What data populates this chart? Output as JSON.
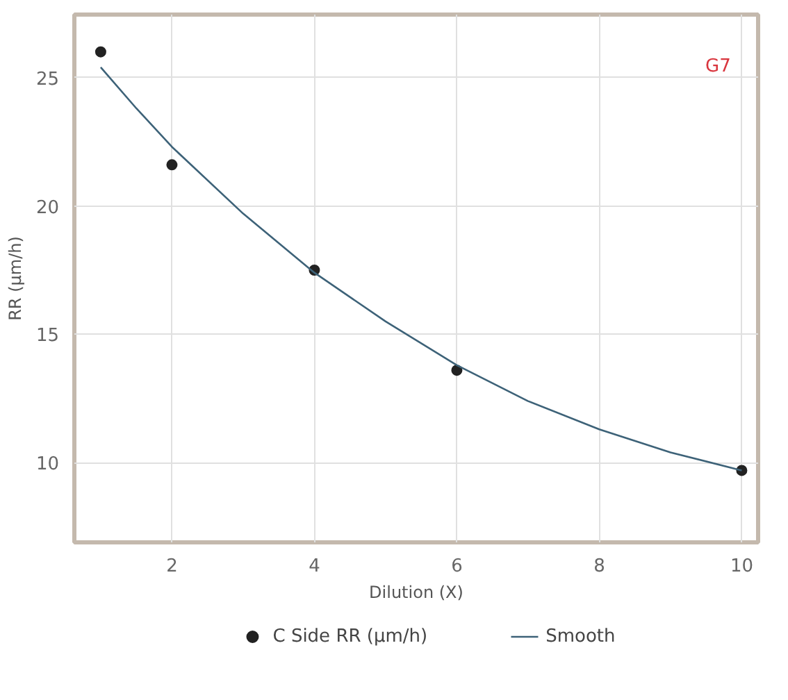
{
  "chart_data": {
    "type": "scatter",
    "xlabel": "Dilution (X)",
    "ylabel": "RR (µm/h)",
    "annotations": [
      "G7"
    ],
    "xlim": [
      0.63,
      10.23
    ],
    "ylim": [
      6.9,
      27.45
    ],
    "xticks": [
      2,
      4,
      6,
      8,
      10
    ],
    "yticks": [
      10,
      15,
      20,
      25
    ],
    "grid": true,
    "legend": "bottom",
    "marker": "circle",
    "series": [
      {
        "name": "C Side RR (µm/h)",
        "type": "scatter",
        "color": "#222222",
        "x": [
          1,
          2,
          4,
          6,
          10
        ],
        "values": [
          26.0,
          21.6,
          17.5,
          13.6,
          9.7
        ]
      },
      {
        "name": "Smooth",
        "type": "line",
        "color": "#3d6278",
        "marker": "none",
        "x": [
          1,
          1.5,
          2,
          3,
          4,
          5,
          6,
          7,
          8,
          9,
          10
        ],
        "values": [
          25.4,
          23.8,
          22.3,
          19.7,
          17.4,
          15.5,
          13.8,
          12.4,
          11.3,
          10.4,
          9.7
        ]
      }
    ]
  }
}
